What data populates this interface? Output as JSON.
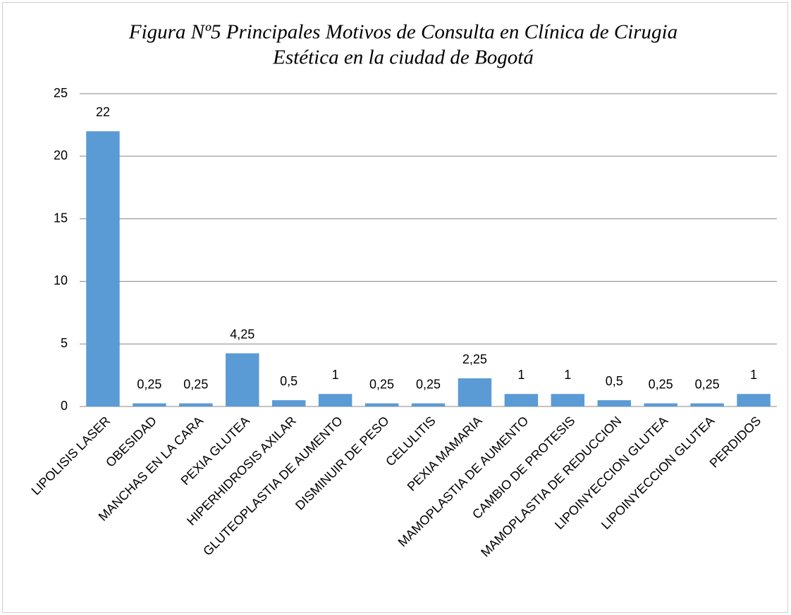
{
  "chart_data": {
    "type": "bar",
    "title": [
      "Figura Nº5 Principales Motivos de Consulta en Clínica de Cirugia",
      "Estética en la ciudad de Bogotá"
    ],
    "categories": [
      "LIPOLISIS LASER",
      "OBESIDAD",
      "MANCHAS EN LA CARA",
      "PEXIA GLUTEA",
      "HIPERHIDROSIS AXILAR",
      "GLUTEOPLASTIA DE AUMENTO",
      "DISMINUIR DE PESO",
      "CELULITIS",
      "PEXIA MAMARIA",
      "MAMOPLASTIA DE AUMENTO",
      "CAMBIO DE PROTESIS",
      "MAMOPLASTIA DE REDUCCION",
      "LIPOINYECCION GLUTEA",
      "LIPOINYECCION GLUTEA",
      "PERDIDOS"
    ],
    "values": [
      22,
      0.25,
      0.25,
      4.25,
      0.5,
      1,
      0.25,
      0.25,
      2.25,
      1,
      1,
      0.5,
      0.25,
      0.25,
      1
    ],
    "value_labels": [
      "22",
      "0,25",
      "0,25",
      "4,25",
      "0,5",
      "1",
      "0,25",
      "0,25",
      "2,25",
      "1",
      "1",
      "0,5",
      "0,25",
      "0,25",
      "1"
    ],
    "color": "#5b9bd5",
    "ylim": [
      0,
      25
    ],
    "yticks": [
      0,
      5,
      10,
      15,
      20,
      25
    ],
    "grid": true
  }
}
